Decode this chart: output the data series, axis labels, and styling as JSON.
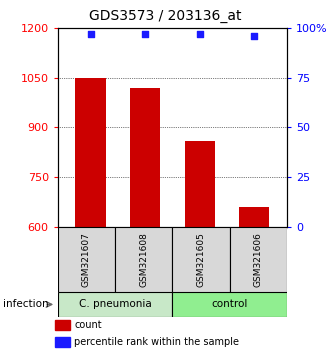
{
  "title": "GDS3573 / 203136_at",
  "samples": [
    "GSM321607",
    "GSM321608",
    "GSM321605",
    "GSM321606"
  ],
  "counts": [
    1050,
    1020,
    860,
    660
  ],
  "percentiles": [
    97,
    97,
    97,
    96
  ],
  "ylim": [
    600,
    1200
  ],
  "yticks_left": [
    600,
    750,
    900,
    1050,
    1200
  ],
  "yticks_right": [
    0,
    25,
    50,
    75,
    100
  ],
  "yticks_right_labels": [
    "0",
    "25",
    "50",
    "75",
    "100%"
  ],
  "bar_color": "#cc0000",
  "dot_color": "#1a1aff",
  "groups": [
    {
      "label": "C. pneumonia",
      "indices": [
        0,
        1
      ],
      "color": "#c8e8c8"
    },
    {
      "label": "control",
      "indices": [
        2,
        3
      ],
      "color": "#90ee90"
    }
  ],
  "group_label": "infection",
  "legend_count_label": "count",
  "legend_pct_label": "percentile rank within the sample",
  "bar_width": 0.55,
  "sample_box_color": "#d8d8d8",
  "plot_bg": "#ffffff",
  "title_fontsize": 10,
  "tick_fontsize": 8,
  "sample_fontsize": 6.5,
  "group_fontsize": 7.5,
  "legend_fontsize": 7
}
